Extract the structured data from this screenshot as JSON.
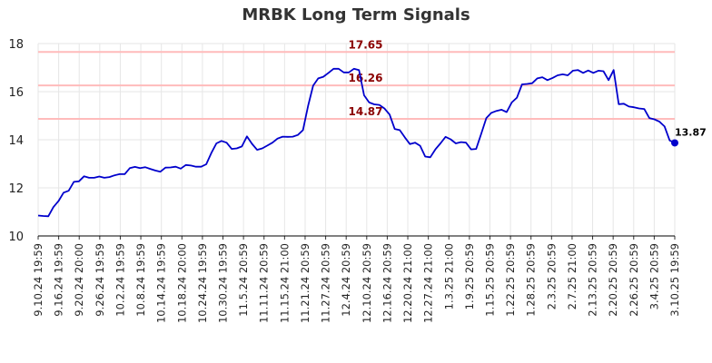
{
  "chart_data": {
    "type": "line",
    "title": "MRBK Long Term Signals",
    "xlabel": "",
    "ylabel": "",
    "ylim": [
      10,
      18
    ],
    "y_ticks": [
      10,
      12,
      14,
      16,
      18
    ],
    "grid": true,
    "x_tick_labels": [
      "9.10.24 19:59",
      "9.16.24 19:59",
      "9.20.24 20:00",
      "9.26.24 19:59",
      "10.2.24 19:59",
      "10.8.24 19:59",
      "10.14.24 19:59",
      "10.18.24 20:00",
      "10.24.24 19:59",
      "10.30.24 19:59",
      "11.5.24 20:59",
      "11.11.24 20:59",
      "11.15.24 21:00",
      "11.21.24 20:59",
      "11.27.24 20:59",
      "12.4.24 20:59",
      "12.10.24 20:59",
      "12.16.24 20:59",
      "12.20.24 21:00",
      "12.27.24 21:00",
      "1.3.25 21:00",
      "1.9.25 20:59",
      "1.15.25 20:59",
      "1.22.25 20:59",
      "1.28.25 20:59",
      "2.3.25 20:59",
      "2.7.25 21:00",
      "2.13.25 20:59",
      "2.20.25 20:59",
      "2.26.25 20:59",
      "3.4.25 20:59",
      "3.10.25 19:59"
    ],
    "reference_lines": [
      {
        "value": 17.65,
        "label": "17.65"
      },
      {
        "value": 16.26,
        "label": "16.26"
      },
      {
        "value": 14.87,
        "label": "14.87"
      }
    ],
    "last_point_label": "13.87",
    "colors": {
      "line": "#0000cc",
      "reference": "#ffbbbb",
      "reference_text": "#8b0000",
      "grid": "#e6e6e6"
    },
    "series": [
      {
        "values": [
          10.85,
          10.83,
          10.82,
          11.2,
          11.45,
          11.8,
          11.88,
          12.25,
          12.27,
          12.48,
          12.42,
          12.42,
          12.47,
          12.42,
          12.45,
          12.52,
          12.57,
          12.57,
          12.82,
          12.87,
          12.82,
          12.86,
          12.79,
          12.72,
          12.67,
          12.84,
          12.85,
          12.88,
          12.8,
          12.95,
          12.93,
          12.88,
          12.88,
          12.98,
          13.45,
          13.85,
          13.95,
          13.88,
          13.62,
          13.64,
          13.72,
          14.14,
          13.83,
          13.58,
          13.64,
          13.76,
          13.88,
          14.05,
          14.13,
          14.12,
          14.13,
          14.2,
          14.4,
          15.4,
          16.25,
          16.55,
          16.62,
          16.78,
          16.95,
          16.95,
          16.8,
          16.8,
          16.95,
          16.9,
          15.85,
          15.55,
          15.47,
          15.45,
          15.3,
          15.05,
          14.45,
          14.4,
          14.1,
          13.82,
          13.88,
          13.75,
          13.3,
          13.27,
          13.6,
          13.85,
          14.12,
          14.02,
          13.85,
          13.9,
          13.88,
          13.6,
          13.62,
          14.25,
          14.9,
          15.12,
          15.2,
          15.25,
          15.15,
          15.55,
          15.75,
          16.3,
          16.32,
          16.35,
          16.55,
          16.6,
          16.48,
          16.57,
          16.68,
          16.72,
          16.68,
          16.87,
          16.9,
          16.78,
          16.88,
          16.78,
          16.87,
          16.85,
          16.48,
          16.9,
          15.48,
          15.5,
          15.38,
          15.35,
          15.3,
          15.28,
          14.9,
          14.85,
          14.75,
          14.55,
          13.97,
          13.87
        ]
      }
    ]
  }
}
